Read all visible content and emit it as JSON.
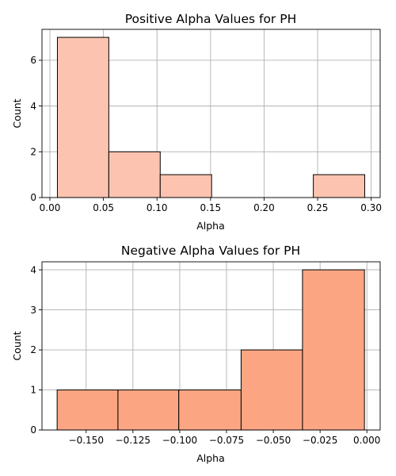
{
  "chart_data": [
    {
      "type": "bar",
      "subtype": "histogram",
      "title": "Positive Alpha Values for PH",
      "xlabel": "Alpha",
      "ylabel": "Count",
      "bar_color": "#fcc4b0",
      "bins": [
        {
          "x0": 0.007,
          "x1": 0.055,
          "count": 7
        },
        {
          "x0": 0.055,
          "x1": 0.103,
          "count": 2
        },
        {
          "x0": 0.103,
          "x1": 0.151,
          "count": 1
        },
        {
          "x0": 0.151,
          "x1": 0.199,
          "count": 0
        },
        {
          "x0": 0.199,
          "x1": 0.246,
          "count": 0
        },
        {
          "x0": 0.246,
          "x1": 0.294,
          "count": 1
        }
      ],
      "xlim": [
        -0.0074,
        0.3084
      ],
      "ylim": [
        0,
        7.35
      ],
      "xticks": [
        0.0,
        0.05,
        0.1,
        0.15,
        0.2,
        0.25,
        0.3
      ],
      "xtick_labels": [
        "0.00",
        "0.05",
        "0.10",
        "0.15",
        "0.20",
        "0.25",
        "0.30"
      ],
      "yticks": [
        0,
        2,
        4,
        6
      ],
      "ytick_labels": [
        "0",
        "2",
        "4",
        "6"
      ],
      "grid": true
    },
    {
      "type": "bar",
      "subtype": "histogram",
      "title": "Negative Alpha Values for PH",
      "xlabel": "Alpha",
      "ylabel": "Count",
      "bar_color": "#fca582",
      "bins": [
        {
          "x0": -0.1655,
          "x1": -0.133,
          "count": 1
        },
        {
          "x0": -0.133,
          "x1": -0.1005,
          "count": 1
        },
        {
          "x0": -0.1005,
          "x1": -0.0672,
          "count": 1
        },
        {
          "x0": -0.0672,
          "x1": -0.0344,
          "count": 2
        },
        {
          "x0": -0.0344,
          "x1": -0.0013,
          "count": 4
        }
      ],
      "xlim": [
        -0.1736,
        0.0071
      ],
      "ylim": [
        0,
        4.2
      ],
      "xticks": [
        -0.15,
        -0.125,
        -0.1,
        -0.075,
        -0.05,
        -0.025,
        0.0
      ],
      "xtick_labels": [
        "−0.150",
        "−0.125",
        "−0.100",
        "−0.075",
        "−0.050",
        "−0.025",
        "0.000"
      ],
      "yticks": [
        0,
        1,
        2,
        3,
        4
      ],
      "ytick_labels": [
        "0",
        "1",
        "2",
        "3",
        "4"
      ],
      "grid": true
    }
  ]
}
